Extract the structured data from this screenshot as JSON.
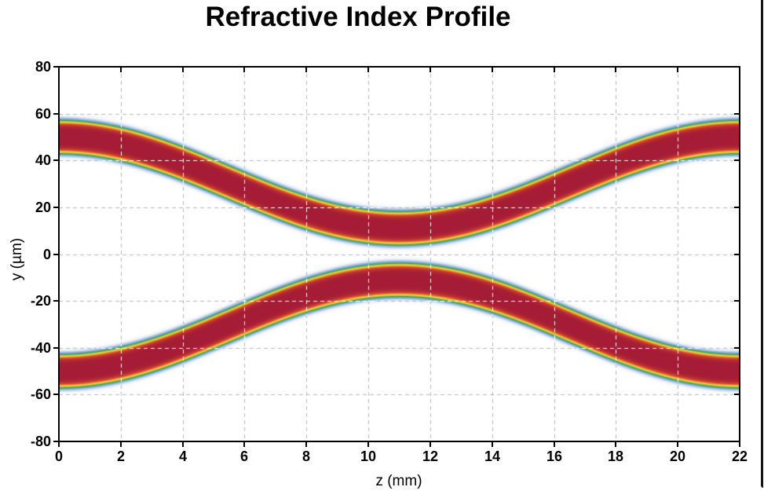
{
  "chart_data": {
    "type": "heatmap",
    "title": "Refractive Index Profile",
    "xlabel": "z (mm)",
    "ylabel": "y (µm)",
    "xlim": [
      0,
      22
    ],
    "ylim": [
      -80,
      80
    ],
    "xticks": [
      0,
      2,
      4,
      6,
      8,
      10,
      12,
      14,
      16,
      18,
      20,
      22
    ],
    "yticks": [
      -80,
      -60,
      -40,
      -20,
      0,
      20,
      40,
      60,
      80
    ],
    "grid": {
      "on": true,
      "style": "dashed",
      "x_step_mm": 2,
      "y_step_um": 20,
      "color_outside_band": "#b9b9b9",
      "color_over_band": "#ffffff"
    },
    "description": "Symmetric S-bend directional coupler: two waveguides approach from y = ±50 µm at the ends to y = ±11 µm at the device center (z = 11 mm), index profile shown with white-blue-green-yellow-orange-maroon colormap",
    "device_length_mm": 22,
    "waveguides": [
      {
        "y_center_start_um": 50,
        "y_center_min_um": 11
      },
      {
        "y_center_start_um": -50,
        "y_center_min_um": -11
      }
    ],
    "bend_shape": "raised-cosine: yc(z) = ymin + (ystart - ymin) * cos^2(pi*z/L)",
    "index_profile": {
      "supergaussian_sigma_um": 8.0,
      "supergaussian_order": 6
    },
    "core_full_width_um": 11,
    "colormap": [
      [
        0.0,
        "#ffffff"
      ],
      [
        0.1,
        "#f2f6fb"
      ],
      [
        0.22,
        "#d4e1f1"
      ],
      [
        0.34,
        "#a9c4e5"
      ],
      [
        0.45,
        "#82a9d6"
      ],
      [
        0.54,
        "#5ba48e"
      ],
      [
        0.62,
        "#3f9e52"
      ],
      [
        0.7,
        "#a2c63e"
      ],
      [
        0.77,
        "#ecd83e"
      ],
      [
        0.84,
        "#f0993a"
      ],
      [
        0.9,
        "#d84f2b"
      ],
      [
        1.0,
        "#a51c36"
      ]
    ],
    "white_grid_threshold": 0.22
  }
}
